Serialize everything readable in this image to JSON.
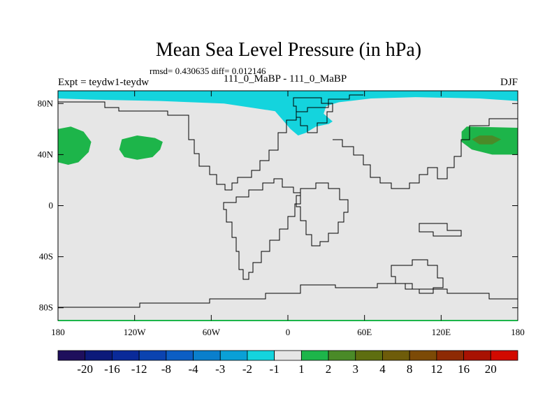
{
  "chart_data": {
    "type": "heatmap",
    "title": "Mean Sea Level Pressure (in hPa)",
    "subtitle": "rmsd= 0.430635 diff= 0.012146",
    "left_label": "Expt = teydw1-teydw",
    "center_label": "111_0_MaBP - 111_0_MaBP",
    "right_label": "DJF",
    "x_range": [
      -180,
      180
    ],
    "y_range": [
      -90,
      90
    ],
    "x_ticks": [
      {
        "value": -180,
        "label": "180"
      },
      {
        "value": -120,
        "label": "120W"
      },
      {
        "value": -60,
        "label": "60W"
      },
      {
        "value": 0,
        "label": "0"
      },
      {
        "value": 60,
        "label": "60E"
      },
      {
        "value": 120,
        "label": "120E"
      },
      {
        "value": 180,
        "label": "180"
      }
    ],
    "y_ticks": [
      {
        "value": 80,
        "label": "80N"
      },
      {
        "value": 40,
        "label": "40N"
      },
      {
        "value": 0,
        "label": "0"
      },
      {
        "value": -40,
        "label": "40S"
      },
      {
        "value": -80,
        "label": "80S"
      }
    ],
    "background_bin": "-1 to 1",
    "colorbar": {
      "colors": [
        "#1e0f5c",
        "#0c1a7a",
        "#0a2a99",
        "#0b43b0",
        "#0c5ec4",
        "#0a7fcc",
        "#0aa0d6",
        "#14d4dd",
        "#e6e6e6",
        "#1db54a",
        "#4a8a28",
        "#5e6e10",
        "#6e5c0a",
        "#7c4a06",
        "#8e2a04",
        "#a81202",
        "#d20a00"
      ],
      "labels": [
        "-20",
        "-16",
        "-12",
        "-8",
        "-4",
        "-3",
        "-2",
        "-1",
        "1",
        "2",
        "3",
        "4",
        "8",
        "12",
        "16",
        "20"
      ]
    },
    "regions": [
      {
        "name": "north-pole-anomaly",
        "bin": "-2 to -1",
        "color": "#14d4dd",
        "poly": [
          [
            -180,
            90
          ],
          [
            180,
            90
          ],
          [
            180,
            82
          ],
          [
            150,
            84
          ],
          [
            100,
            85
          ],
          [
            65,
            84
          ],
          [
            40,
            81
          ],
          [
            30,
            78
          ],
          [
            28,
            72
          ],
          [
            35,
            66
          ],
          [
            32,
            64
          ],
          [
            22,
            62
          ],
          [
            14,
            57
          ],
          [
            8,
            55
          ],
          [
            2,
            60
          ],
          [
            -10,
            74
          ],
          [
            -50,
            80
          ],
          [
            -100,
            82
          ],
          [
            -150,
            83
          ],
          [
            -180,
            84
          ]
        ]
      },
      {
        "name": "north-pacific-west",
        "bin": "1 to 2",
        "color": "#1db54a",
        "poly": [
          [
            -180,
            60
          ],
          [
            -170,
            62
          ],
          [
            -160,
            58
          ],
          [
            -154,
            50
          ],
          [
            -156,
            42
          ],
          [
            -164,
            34
          ],
          [
            -172,
            32
          ],
          [
            -180,
            34
          ]
        ]
      },
      {
        "name": "north-pacific-east",
        "bin": "1 to 2",
        "color": "#1db54a",
        "poly": [
          [
            -130,
            52
          ],
          [
            -118,
            55
          ],
          [
            -104,
            53
          ],
          [
            -98,
            50
          ],
          [
            -100,
            44
          ],
          [
            -106,
            38
          ],
          [
            -118,
            36
          ],
          [
            -128,
            38
          ],
          [
            -132,
            44
          ]
        ]
      },
      {
        "name": "north-pacific-dateline",
        "bin": "1 to 2",
        "color": "#1db54a",
        "poly": [
          [
            180,
            61
          ],
          [
            140,
            62
          ],
          [
            136,
            58
          ],
          [
            136,
            50
          ],
          [
            144,
            44
          ],
          [
            160,
            40
          ],
          [
            180,
            40
          ]
        ]
      },
      {
        "name": "north-pacific-core",
        "bin": "2 to 3",
        "color": "#4a8a28",
        "poly": [
          [
            144,
            52
          ],
          [
            150,
            55
          ],
          [
            160,
            55
          ],
          [
            167,
            52
          ],
          [
            160,
            48
          ],
          [
            150,
            48
          ]
        ]
      }
    ]
  }
}
